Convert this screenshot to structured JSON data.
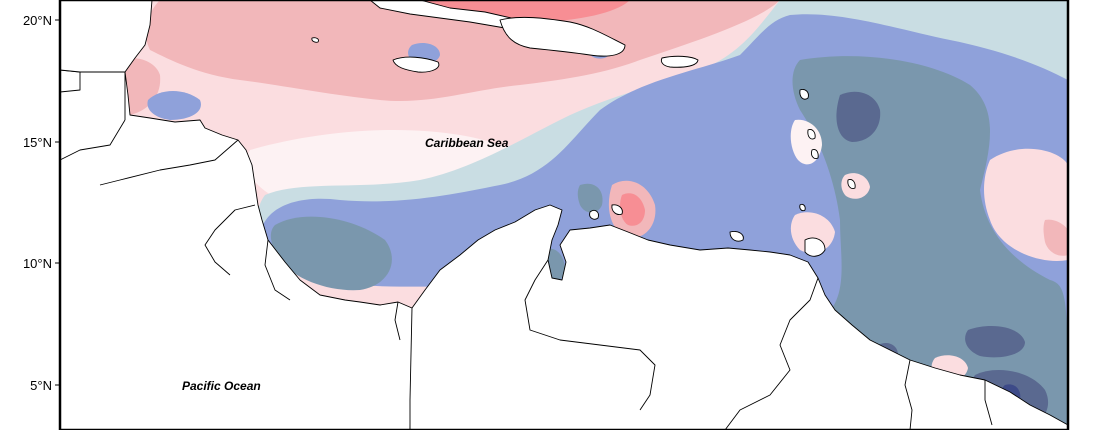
{
  "map": {
    "region": "Caribbean Sea and northern South America",
    "labels": {
      "caribbean": "Caribbean Sea",
      "pacific": "Pacific Ocean"
    },
    "latitude_ticks": [
      "20°N",
      "15°N",
      "10°N",
      "5°N"
    ],
    "palette": {
      "strong_positive": "#f78e94",
      "positive": "#f2b7ba",
      "weak_positive": "#fbdde0",
      "neutral": "#fdf2f3",
      "weak_negative": "#c9dde3",
      "negative": "#8fa1da",
      "strong_negative": "#7a97ad",
      "very_strong_negative": "#5a6990",
      "extreme_negative": "#3d4a88"
    }
  }
}
